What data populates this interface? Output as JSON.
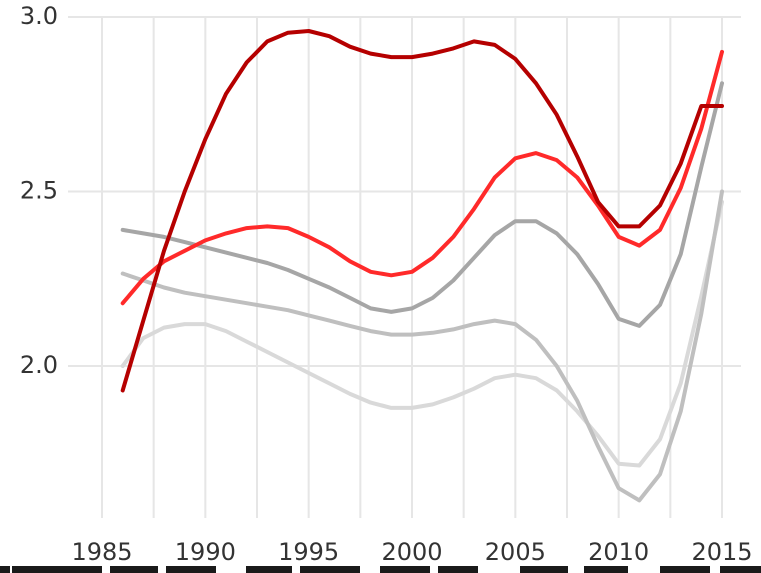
{
  "chart_data": {
    "type": "line",
    "title": "",
    "xlabel": "",
    "ylabel": "",
    "xlim": [
      1985,
      2015
    ],
    "ylim": [
      1.6,
      3.0
    ],
    "x_ticks": [
      1985,
      1990,
      1995,
      2000,
      2005,
      2010,
      2015
    ],
    "x_tick_labels": [
      "1985",
      "1990",
      "1995",
      "2000",
      "2005",
      "2010",
      "2015"
    ],
    "y_ticks": [
      2.0,
      2.5,
      3.0
    ],
    "y_tick_labels": [
      "2.0",
      "2.5",
      "3.0"
    ],
    "grid": true,
    "legend": "none",
    "x": [
      1986,
      1987,
      1988,
      1989,
      1990,
      1991,
      1992,
      1993,
      1994,
      1995,
      1996,
      1997,
      1998,
      1999,
      2000,
      2001,
      2002,
      2003,
      2004,
      2005,
      2006,
      2007,
      2008,
      2009,
      2010,
      2011,
      2012,
      2013,
      2014,
      2015
    ],
    "series": [
      {
        "color": "#b50000",
        "values": [
          1.93,
          2.13,
          2.33,
          2.5,
          2.65,
          2.78,
          2.87,
          2.93,
          2.955,
          2.96,
          2.945,
          2.915,
          2.895,
          2.885,
          2.885,
          2.895,
          2.91,
          2.93,
          2.92,
          2.88,
          2.81,
          2.72,
          2.6,
          2.47,
          2.4,
          2.4,
          2.46,
          2.58,
          2.745,
          2.745
        ]
      },
      {
        "color": "#ff2a2a",
        "values": [
          2.18,
          2.25,
          2.3,
          2.33,
          2.36,
          2.38,
          2.395,
          2.4,
          2.395,
          2.37,
          2.34,
          2.3,
          2.27,
          2.26,
          2.27,
          2.31,
          2.37,
          2.45,
          2.54,
          2.595,
          2.61,
          2.59,
          2.54,
          2.46,
          2.37,
          2.345,
          2.39,
          2.51,
          2.68,
          2.9
        ]
      },
      {
        "color": "#a6a6a6",
        "values": [
          2.39,
          2.38,
          2.37,
          2.355,
          2.34,
          2.325,
          2.31,
          2.295,
          2.275,
          2.25,
          2.225,
          2.195,
          2.165,
          2.155,
          2.165,
          2.195,
          2.245,
          2.31,
          2.375,
          2.415,
          2.415,
          2.38,
          2.32,
          2.235,
          2.135,
          2.115,
          2.175,
          2.32,
          2.57,
          2.81
        ]
      },
      {
        "color": "#bfbfbf",
        "values": [
          2.265,
          2.245,
          2.225,
          2.21,
          2.2,
          2.19,
          2.18,
          2.17,
          2.16,
          2.145,
          2.13,
          2.115,
          2.1,
          2.09,
          2.09,
          2.095,
          2.105,
          2.12,
          2.13,
          2.12,
          2.075,
          2.0,
          1.9,
          1.77,
          1.65,
          1.615,
          1.69,
          1.87,
          2.15,
          2.5
        ]
      },
      {
        "color": "#d9d9d9",
        "values": [
          2.0,
          2.08,
          2.11,
          2.12,
          2.12,
          2.1,
          2.07,
          2.04,
          2.01,
          1.98,
          1.95,
          1.92,
          1.895,
          1.88,
          1.88,
          1.89,
          1.91,
          1.935,
          1.965,
          1.975,
          1.965,
          1.93,
          1.87,
          1.8,
          1.72,
          1.715,
          1.79,
          1.95,
          2.2,
          2.47
        ]
      }
    ]
  }
}
